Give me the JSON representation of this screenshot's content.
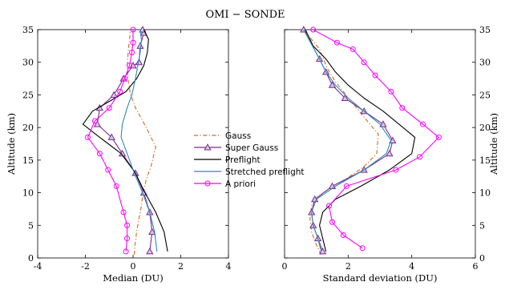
{
  "chart_data": {
    "type": "line",
    "title": "OMI − SONDE",
    "legend": {
      "placement": "center",
      "entries": [
        {
          "name": "Gauss",
          "color": "#d2691e",
          "dash": "dashdot",
          "marker": "none"
        },
        {
          "name": "Super Gauss",
          "color": "#7b2a8e",
          "dash": "solid",
          "marker": "triangle"
        },
        {
          "name": "Preflight",
          "color": "#000000",
          "dash": "solid",
          "marker": "none"
        },
        {
          "name": "Stretched preflight",
          "color": "#2e8bb8",
          "dash": "solid",
          "marker": "none"
        },
        {
          "name": "A priori",
          "color": "#ff00ff",
          "dash": "solid",
          "marker": "circle"
        }
      ]
    },
    "panels": [
      {
        "xlabel": "Median (DU)",
        "ylabel": "Altitude (km)",
        "ylabel_side": "left",
        "xlim": [
          -4,
          4
        ],
        "ylim": [
          0,
          35
        ],
        "xticks": [
          -4,
          -2,
          0,
          2,
          4
        ],
        "yticks": [
          0,
          5,
          10,
          15,
          20,
          25,
          30,
          35
        ],
        "series": [
          {
            "name": "Gauss",
            "x": [
              0.05,
              0.08,
              0.15,
              0.25,
              0.35,
              0.42,
              0.55,
              0.75,
              0.95,
              0.55,
              0.1,
              -0.1,
              -0.2,
              -0.25,
              -0.2,
              -0.1
            ],
            "y": [
              0.5,
              2,
              4,
              6,
              8,
              10,
              12,
              14,
              17,
              20,
              23,
              25,
              27,
              29,
              32,
              35
            ]
          },
          {
            "name": "Super Gauss",
            "x": [
              0.7,
              0.8,
              0.7,
              0.45,
              0.1,
              -0.45,
              -0.9,
              -1.5,
              -1.4,
              -0.8,
              -0.4,
              0.0,
              0.25,
              0.3,
              0.45,
              0.4
            ],
            "y": [
              1,
              4,
              7,
              10,
              13,
              16,
              18.5,
              20.5,
              23,
              25,
              27.5,
              29.5,
              30,
              32.5,
              34.5,
              35
            ]
          },
          {
            "name": "Preflight",
            "x": [
              1.45,
              1.3,
              0.95,
              0.5,
              0.1,
              -0.5,
              -1.4,
              -2.1,
              -1.7,
              -1.0,
              -0.3,
              0.15,
              0.45,
              0.6,
              0.65,
              0.45
            ],
            "y": [
              1,
              4,
              7,
              10,
              13,
              16,
              18.5,
              20.5,
              22.5,
              24,
              25.5,
              27.5,
              29.5,
              31.5,
              33.5,
              35
            ]
          },
          {
            "name": "Stretched preflight",
            "x": [
              1.0,
              0.9,
              0.7,
              0.4,
              0.05,
              -0.25,
              -0.5,
              -0.45,
              -0.25,
              -0.05,
              0.1,
              0.2,
              0.3,
              0.35,
              0.3
            ],
            "y": [
              1,
              4,
              7,
              10,
              13,
              16,
              18.5,
              20.5,
              23,
              25,
              27.5,
              29.5,
              31.5,
              33.5,
              35
            ]
          },
          {
            "name": "A priori",
            "x": [
              -0.3,
              -0.25,
              -0.25,
              -0.4,
              -0.7,
              -1.05,
              -1.4,
              -1.9,
              -1.6,
              -1.0,
              -0.55,
              -0.35,
              -0.15,
              -0.05,
              0.0,
              0.0
            ],
            "y": [
              1,
              3,
              5,
              7,
              11,
              13.5,
              16,
              18.5,
              21,
              23,
              25.5,
              27.5,
              29.5,
              31.5,
              33,
              35
            ]
          }
        ]
      },
      {
        "xlabel": "Standard deviation (DU)",
        "ylabel": "Altitude (km)",
        "ylabel_side": "right",
        "xlim": [
          0,
          6
        ],
        "ylim": [
          0,
          35
        ],
        "xticks": [
          0,
          2,
          4,
          6
        ],
        "yticks": [
          0,
          5,
          10,
          15,
          20,
          25,
          30,
          35
        ],
        "series": [
          {
            "name": "Gauss",
            "x": [
              1.15,
              1.0,
              0.85,
              0.8,
              0.85,
              1.0,
              1.3,
              1.9,
              2.5,
              2.9,
              2.95,
              2.6,
              2.1,
              1.6,
              1.35,
              1.1,
              0.6
            ],
            "y": [
              0.5,
              2,
              4,
              6,
              8,
              9,
              10,
              12,
              14,
              16,
              19,
              21,
              24,
              27,
              29,
              32,
              35
            ]
          },
          {
            "name": "Super Gauss",
            "x": [
              1.2,
              1.05,
              0.9,
              0.85,
              0.95,
              1.5,
              2.5,
              3.3,
              3.4,
              3.1,
              2.5,
              1.9,
              1.5,
              1.3,
              1.1,
              0.6
            ],
            "y": [
              1,
              3,
              5,
              7,
              9,
              11,
              13.5,
              16,
              18,
              20.5,
              22.5,
              24.5,
              26.5,
              28.5,
              30.5,
              35
            ]
          },
          {
            "name": "Preflight",
            "x": [
              1.3,
              1.2,
              1.1,
              1.2,
              1.6,
              2.4,
              3.3,
              4.0,
              4.1,
              3.6,
              3.1,
              2.5,
              2.0,
              1.6,
              1.3,
              0.9,
              0.65
            ],
            "y": [
              1,
              3,
              5,
              7,
              9,
              11,
              13.5,
              16,
              18.5,
              20.5,
              22.5,
              24.5,
              26.5,
              28.5,
              30.5,
              32.5,
              35
            ]
          },
          {
            "name": "Stretched preflight",
            "x": [
              1.15,
              1.05,
              0.9,
              0.85,
              1.0,
              1.6,
              2.5,
              3.2,
              3.35,
              3.0,
              2.5,
              2.0,
              1.6,
              1.3,
              1.1,
              0.6
            ],
            "y": [
              1,
              3,
              5,
              7,
              9,
              11,
              13.5,
              16,
              18,
              20.5,
              22.5,
              24.5,
              26.5,
              28.5,
              30.5,
              35
            ]
          },
          {
            "name": "A priori",
            "x": [
              2.45,
              1.85,
              1.5,
              1.4,
              1.95,
              3.5,
              4.25,
              4.85,
              4.35,
              3.7,
              3.35,
              2.85,
              2.5,
              2.15,
              1.65,
              0.9
            ],
            "y": [
              1.5,
              3.5,
              5.5,
              8,
              11,
              13.5,
              15.5,
              18.5,
              20.5,
              23,
              25.5,
              28,
              30,
              32,
              33,
              35
            ]
          }
        ]
      }
    ]
  }
}
